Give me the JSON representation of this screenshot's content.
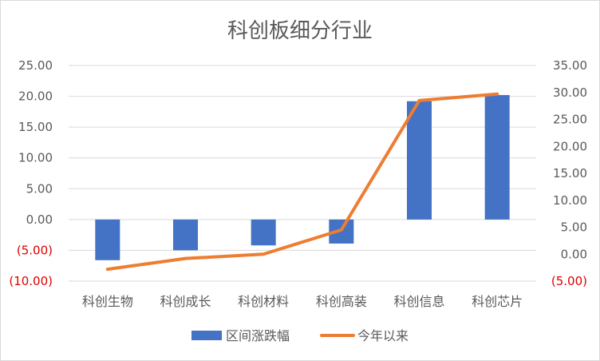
{
  "chart_data": {
    "type": "bar",
    "title": "科创板细分行业",
    "categories": [
      "科创生物",
      "科创成长",
      "科创材料",
      "科创高装",
      "科创信息",
      "科创芯片"
    ],
    "series": [
      {
        "name": "区间涨跌幅",
        "type": "bar",
        "axis": "left",
        "color": "#4472C4",
        "values": [
          -6.6,
          -5.0,
          -4.2,
          -3.9,
          19.2,
          20.2
        ]
      },
      {
        "name": "今年以来",
        "type": "line",
        "axis": "right",
        "color": "#ED7D31",
        "values": [
          -2.8,
          -0.8,
          0.0,
          4.5,
          28.5,
          29.7
        ]
      }
    ],
    "ylim_left": [
      -10,
      25
    ],
    "ylim_right": [
      -5,
      35
    ],
    "yticks_left": [
      "25.00",
      "20.00",
      "15.00",
      "10.00",
      "5.00",
      "0.00",
      "(5.00)",
      "(10.00)"
    ],
    "yticks_right": [
      "35.00",
      "30.00",
      "25.00",
      "20.00",
      "15.00",
      "10.00",
      "5.00",
      "0.00",
      "(5.00)"
    ],
    "negative_tick_color": "#E00000",
    "grid": true,
    "legend_position": "bottom"
  }
}
